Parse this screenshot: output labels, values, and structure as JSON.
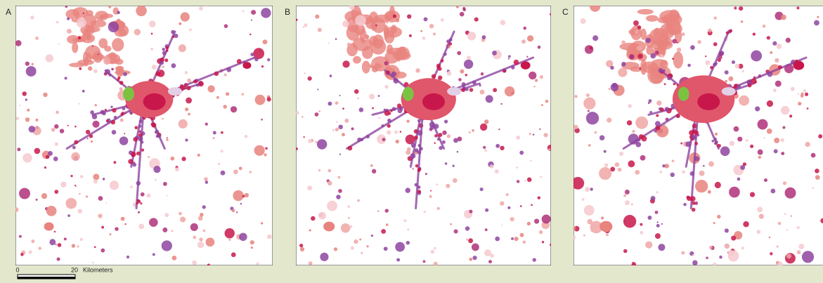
{
  "panels": [
    {
      "label": "A"
    },
    {
      "label": "B"
    },
    {
      "label": "C"
    }
  ],
  "scale_bar": {
    "labels": [
      "0",
      "20"
    ],
    "unit": "Kilometers"
  }
}
